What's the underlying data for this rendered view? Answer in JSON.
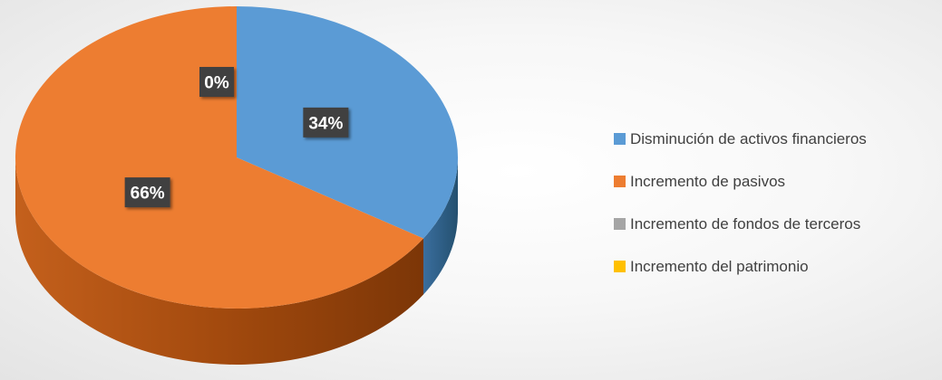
{
  "chart_data": {
    "type": "pie",
    "style": "3d",
    "categories": [
      "Disminución de activos financieros",
      "Incremento de pasivos",
      "Incremento de fondos de terceros",
      "Incremento del patrimonio"
    ],
    "values": [
      34,
      66,
      0,
      0
    ],
    "data_labels": [
      "34%",
      "66%",
      "0%",
      ""
    ],
    "colors": [
      "#5b9bd5",
      "#ed7d31",
      "#a5a5a5",
      "#ffc000"
    ],
    "title": "",
    "legend_position": "right"
  }
}
